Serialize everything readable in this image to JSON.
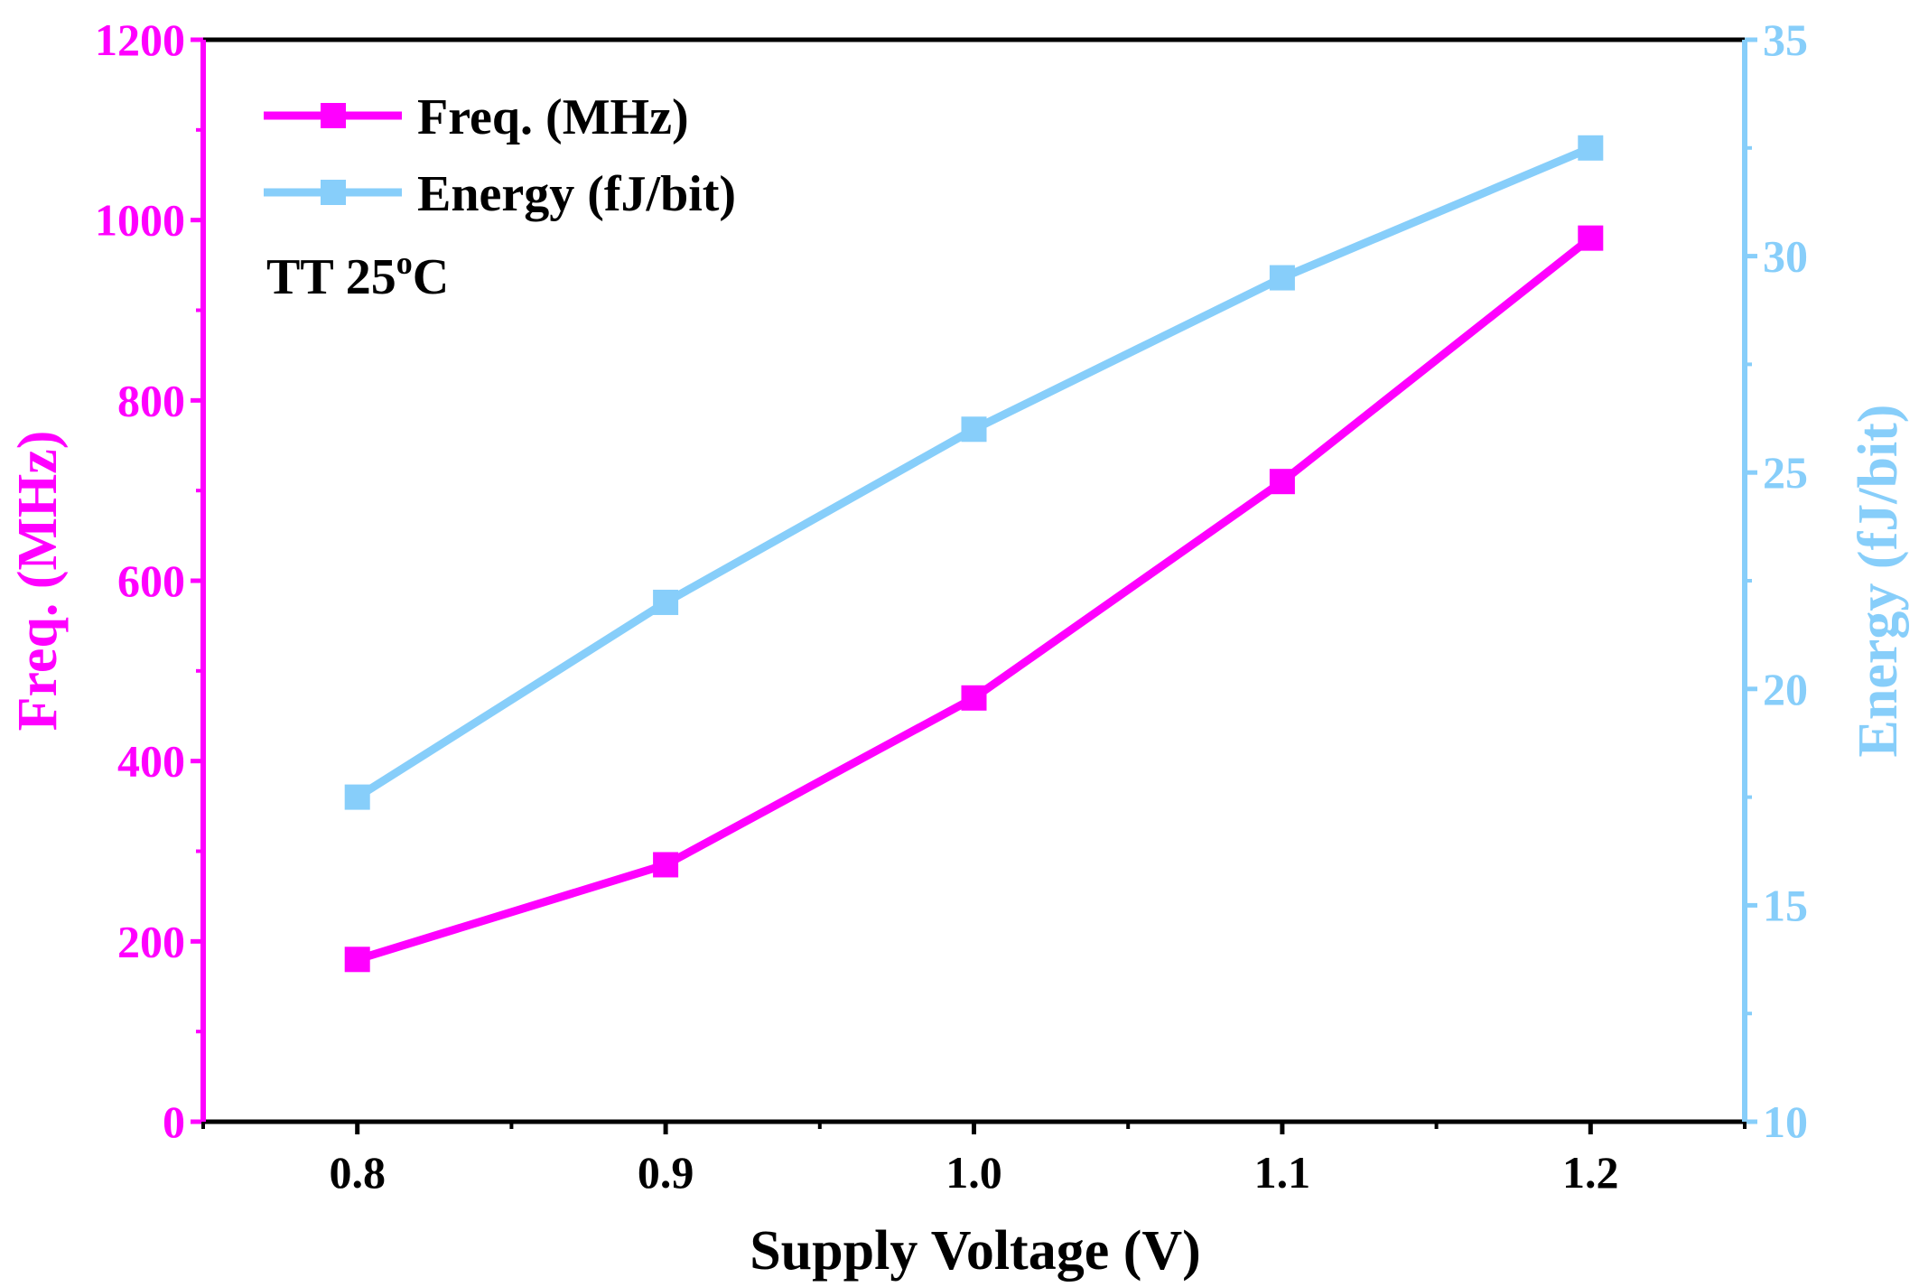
{
  "colors": {
    "freq": "#ff00ff",
    "energy": "#87cefa",
    "frame": "#000000"
  },
  "chart_data": {
    "type": "line",
    "xlabel": "Supply Voltage (V)",
    "x": [
      0.8,
      0.9,
      1.0,
      1.1,
      1.2
    ],
    "x_ticks": [
      "0.8",
      "0.9",
      "1.0",
      "1.1",
      "1.2"
    ],
    "xlim": [
      0.75,
      1.25
    ],
    "y_left": {
      "label": "Freq. (MHz)",
      "lim": [
        0,
        1200
      ],
      "ticks": [
        "0",
        "200",
        "400",
        "600",
        "800",
        "1000",
        "1200"
      ]
    },
    "y_right": {
      "label": "Energy (fJ/bit)",
      "lim": [
        10,
        35
      ],
      "ticks": [
        "10",
        "15",
        "20",
        "25",
        "30",
        "35"
      ]
    },
    "series": [
      {
        "name": "Freq. (MHz)",
        "axis": "left",
        "color": "#ff00ff",
        "marker": "square",
        "values": [
          180,
          285,
          470,
          710,
          980
        ]
      },
      {
        "name": "Energy (fJ/bit)",
        "axis": "right",
        "color": "#87cefa",
        "marker": "square",
        "values": [
          17.5,
          22.0,
          26.0,
          29.5,
          32.5
        ]
      }
    ],
    "legend": {
      "placement": "top-left"
    },
    "annotation": {
      "text": "TT 25",
      "superscript": "o",
      "suffix": "C"
    },
    "grid": false
  }
}
